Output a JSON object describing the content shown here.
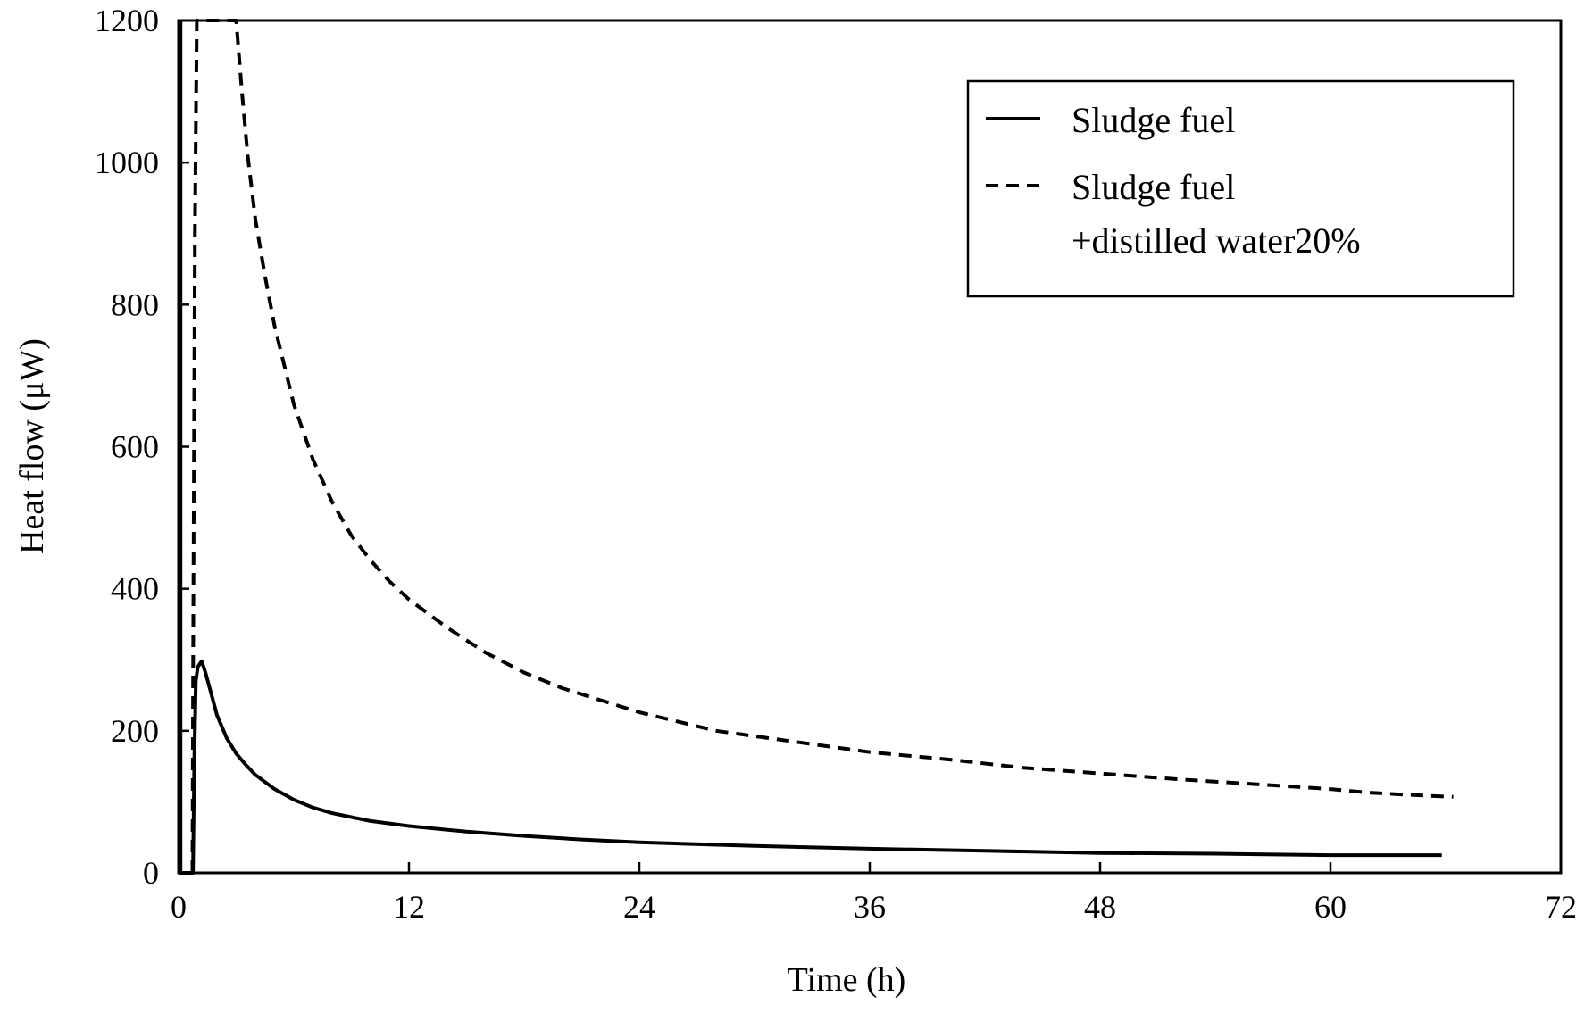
{
  "chart_data": {
    "type": "line",
    "title": "",
    "xlabel": "Time (h)",
    "ylabel": "Heat flow (μW)",
    "xlim": [
      0,
      72
    ],
    "ylim": [
      0,
      1200
    ],
    "xticks": [
      0,
      12,
      24,
      36,
      48,
      60,
      72
    ],
    "yticks": [
      0,
      200,
      400,
      600,
      800,
      1000,
      1200
    ],
    "xtick_labels": [
      "0",
      "12",
      "24",
      "36",
      "48",
      "60",
      "72"
    ],
    "ytick_labels": [
      "0",
      "200",
      "400",
      "600",
      "800",
      "1000",
      "1200"
    ],
    "grid": false,
    "legend_position": "top-right",
    "series": [
      {
        "name": "Sludge fuel",
        "style": "solid",
        "color": "#000000",
        "x": [
          0.1,
          0.1,
          0.5,
          0.75,
          0.82,
          0.9,
          1.0,
          1.2,
          1.4,
          1.7,
          2.0,
          2.5,
          3.0,
          3.5,
          4.0,
          5.0,
          6.0,
          7.0,
          8.0,
          10.0,
          12.0,
          15.0,
          18.0,
          21.0,
          24.0,
          30.0,
          36.0,
          42.0,
          48.0,
          54.0,
          60.0,
          65.8
        ],
        "y": [
          1200,
          0,
          0,
          0,
          160,
          270,
          290,
          298,
          282,
          252,
          222,
          190,
          168,
          152,
          138,
          118,
          103,
          92,
          84,
          73,
          66,
          58,
          52,
          47,
          43,
          38,
          34,
          31,
          28,
          27,
          25,
          25
        ]
      },
      {
        "name": "Sludge fuel\n+distilled water20%",
        "legend_lines": [
          "Sludge fuel",
          "+distilled water20%"
        ],
        "style": "dashed",
        "color": "#000000",
        "x": [
          0.72,
          0.76,
          0.85,
          0.95,
          1.2,
          1.6,
          2.2,
          2.8,
          3.0,
          3.3,
          3.6,
          4.0,
          4.5,
          5.0,
          6.0,
          7.0,
          8.0,
          9.0,
          10.0,
          11.0,
          12.0,
          14.0,
          16.0,
          18.0,
          20.0,
          24.0,
          28.0,
          32.0,
          36.0,
          40.0,
          44.0,
          48.0,
          52.0,
          56.0,
          60.0,
          62.0,
          64.0,
          66.4
        ],
        "y": [
          0,
          300,
          900,
          1200,
          1200,
          1200,
          1200,
          1200,
          1200,
          1100,
          1010,
          920,
          840,
          770,
          660,
          582,
          522,
          475,
          440,
          410,
          385,
          345,
          310,
          282,
          260,
          226,
          200,
          185,
          170,
          160,
          148,
          140,
          132,
          125,
          118,
          113,
          110,
          107
        ]
      }
    ]
  }
}
